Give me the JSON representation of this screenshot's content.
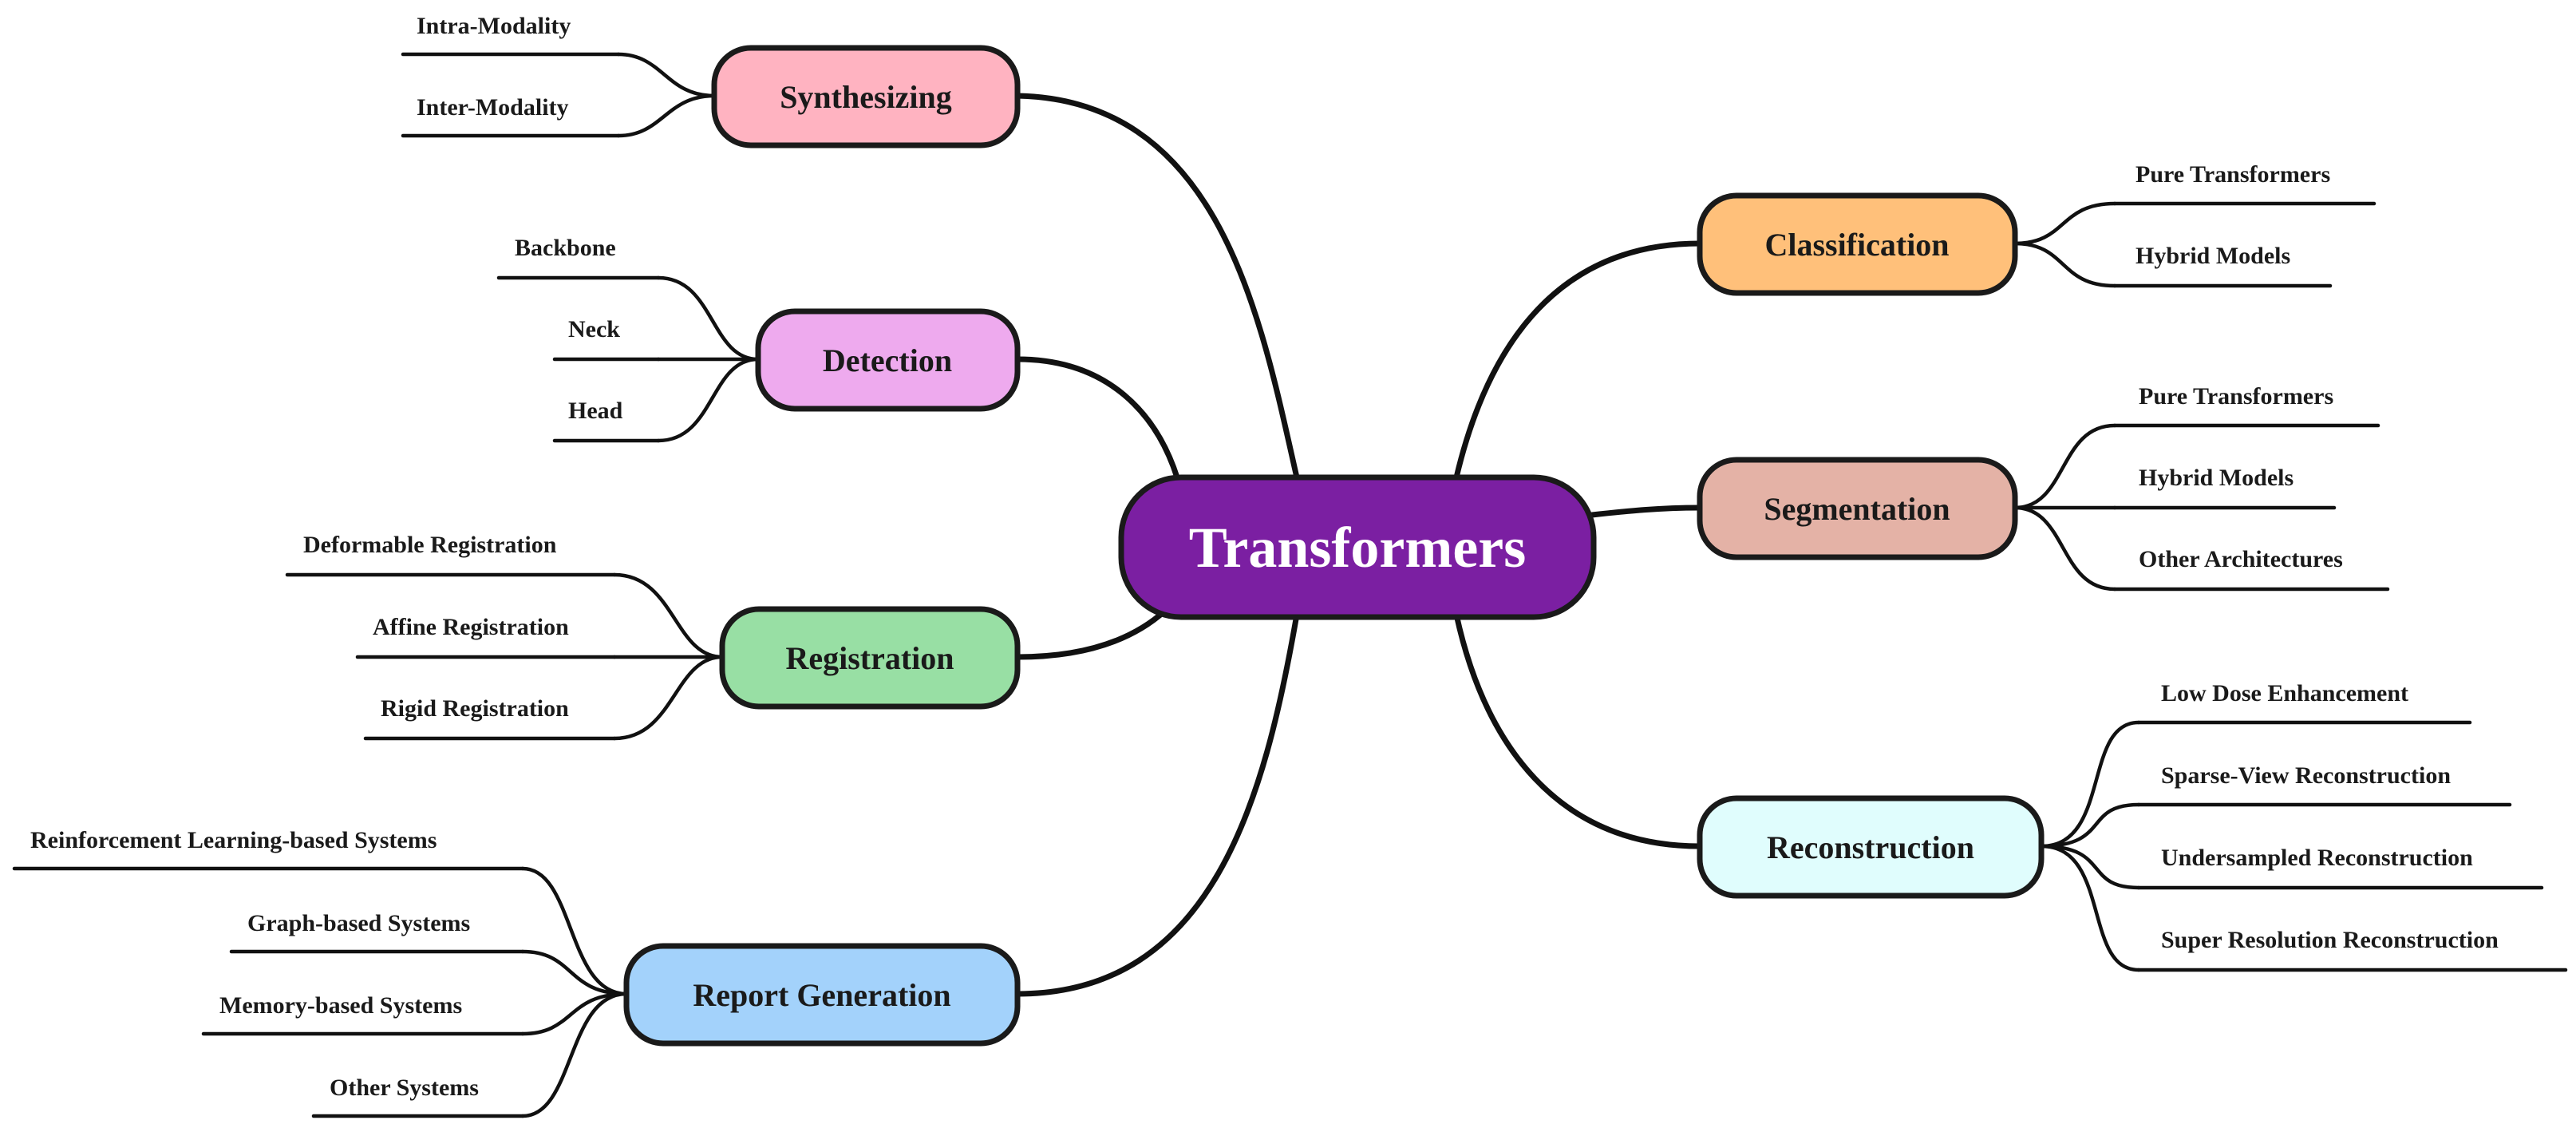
{
  "root": {
    "label": "Transformers",
    "color": "#7b1fa2"
  },
  "branches": {
    "synthesizing": {
      "label": "Synthesizing",
      "color": "#ffb3c1",
      "leaves": [
        "Intra-Modality",
        "Inter-Modality"
      ]
    },
    "detection": {
      "label": "Detection",
      "color": "#eeaaee",
      "leaves": [
        "Backbone",
        "Neck",
        "Head"
      ]
    },
    "registration": {
      "label": "Registration",
      "color": "#98dfa4",
      "leaves": [
        "Deformable Registration",
        "Affine Registration",
        "Rigid Registration"
      ]
    },
    "report_generation": {
      "label": "Report Generation",
      "color": "#a3d2fb",
      "leaves": [
        "Reinforcement Learning-based Systems",
        "Graph-based Systems",
        "Memory-based Systems",
        "Other Systems"
      ]
    },
    "classification": {
      "label": "Classification",
      "color": "#ffc07a",
      "leaves": [
        "Pure Transformers",
        "Hybrid Models"
      ]
    },
    "segmentation": {
      "label": "Segmentation",
      "color": "#e4b2a6",
      "leaves": [
        "Pure Transformers",
        "Hybrid Models",
        "Other Architectures"
      ]
    },
    "reconstruction": {
      "label": "Reconstruction",
      "color": "#e0fdfd",
      "leaves": [
        "Low Dose Enhancement",
        "Sparse-View Reconstruction",
        "Undersampled Reconstruction",
        "Super Resolution Reconstruction"
      ]
    }
  }
}
